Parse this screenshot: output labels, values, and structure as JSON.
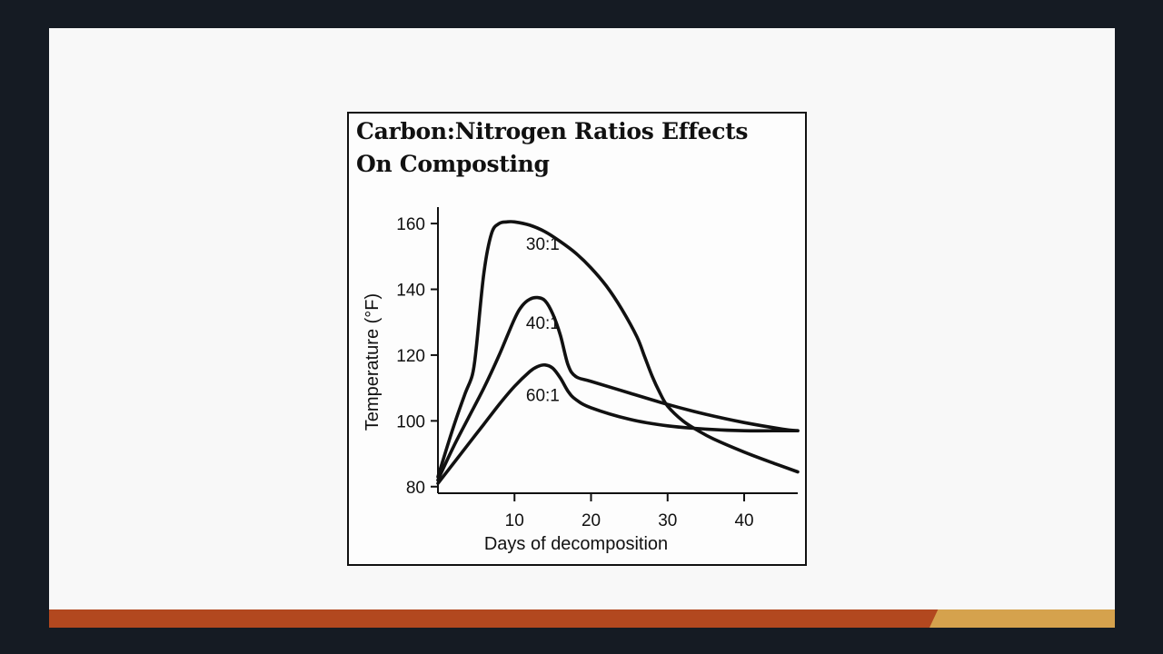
{
  "chart_data": {
    "type": "line",
    "title": "Carbon:Nitrogen Ratios Effects\nOn Composting",
    "xlabel": "Days of decomposition",
    "ylabel": "Temperature (°F)",
    "xlim": [
      0,
      47
    ],
    "ylim": [
      78,
      165
    ],
    "xticks": [
      10,
      20,
      30,
      40
    ],
    "yticks": [
      80,
      100,
      120,
      140,
      160
    ],
    "series": [
      {
        "name": "30:1",
        "label_at": [
          11.5,
          152
        ],
        "x": [
          0,
          2,
          3.5,
          4.5,
          5,
          6,
          7,
          8,
          9,
          10,
          12,
          14,
          16,
          18,
          20,
          22,
          24,
          26,
          27,
          28,
          29,
          30,
          32,
          34,
          36,
          40,
          44,
          47
        ],
        "y": [
          83,
          98,
          108,
          114,
          122,
          145,
          157,
          160,
          160.5,
          160.5,
          159.5,
          157.5,
          154.5,
          151,
          146.5,
          141,
          134,
          125.5,
          119.5,
          113.5,
          108.5,
          104.5,
          100,
          97,
          94.5,
          90.5,
          87,
          84.5
        ]
      },
      {
        "name": "40:1",
        "label_at": [
          11.5,
          128
        ],
        "x": [
          0,
          2,
          4,
          6,
          8,
          10,
          11,
          12,
          13,
          14,
          15,
          16,
          17,
          18,
          20,
          25,
          30,
          35,
          40,
          45,
          47
        ],
        "y": [
          82,
          92,
          101,
          110,
          120,
          131,
          135,
          137,
          137.5,
          136.5,
          132.5,
          126,
          117,
          113.5,
          112,
          108.5,
          105,
          102,
          99.5,
          97.5,
          97
        ]
      },
      {
        "name": "60:1",
        "label_at": [
          11.5,
          106
        ],
        "x": [
          0,
          2,
          4,
          6,
          8,
          10,
          12,
          13,
          14,
          15,
          16,
          17,
          18,
          20,
          25,
          30,
          35,
          40,
          45,
          47
        ],
        "y": [
          81,
          87,
          93,
          99,
          105,
          110.5,
          115,
          116.5,
          117,
          116,
          113,
          109,
          106.5,
          104,
          100.5,
          98.5,
          97.5,
          97,
          97,
          97
        ]
      }
    ]
  }
}
